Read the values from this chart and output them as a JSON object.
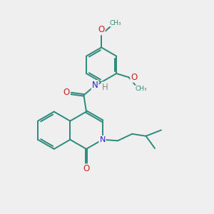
{
  "bg_color": "#efefef",
  "bond_color": "#2d8a7a",
  "N_color": "#2222cc",
  "O_color": "#cc2222",
  "H_color": "#888888",
  "figsize": [
    3.0,
    3.0
  ],
  "dpi": 100,
  "xlim": [
    0,
    10
  ],
  "ylim": [
    0,
    10
  ],
  "lw": 1.4,
  "ring_r": 0.88,
  "ph_r": 0.82
}
